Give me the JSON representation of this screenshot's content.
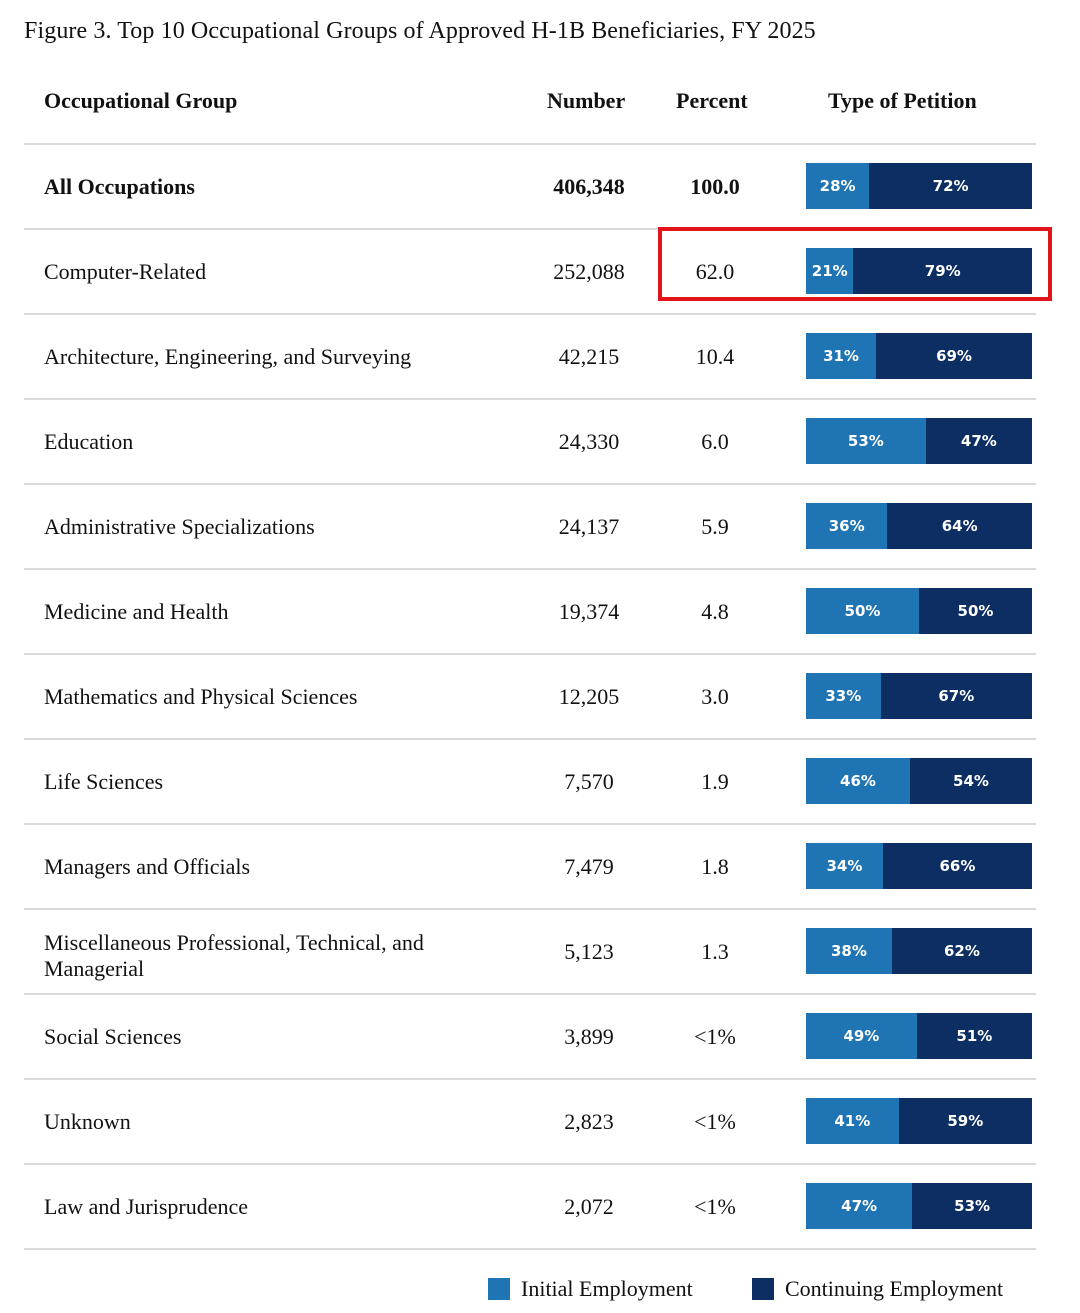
{
  "chart_data": {
    "type": "table",
    "title": "Figure 3. Top 10 Occupational Groups of Approved H-1B Beneficiaries, FY 2025",
    "columns": [
      "Occupational Group",
      "Number",
      "Percent",
      "Type of Petition"
    ],
    "rows": [
      {
        "group": "All Occupations",
        "number": "406,348",
        "percent": "100.0",
        "initial_pct": 28,
        "initial_label": "28%",
        "continuing_pct": 72,
        "continuing_label": "72%"
      },
      {
        "group": "Computer-Related",
        "number": "252,088",
        "percent": "62.0",
        "initial_pct": 21,
        "initial_label": "21%",
        "continuing_pct": 79,
        "continuing_label": "79%"
      },
      {
        "group": "Architecture, Engineering, and Surveying",
        "number": "42,215",
        "percent": "10.4",
        "initial_pct": 31,
        "initial_label": "31%",
        "continuing_pct": 69,
        "continuing_label": "69%"
      },
      {
        "group": "Education",
        "number": "24,330",
        "percent": "6.0",
        "initial_pct": 53,
        "initial_label": "53%",
        "continuing_pct": 47,
        "continuing_label": "47%"
      },
      {
        "group": "Administrative Specializations",
        "number": "24,137",
        "percent": "5.9",
        "initial_pct": 36,
        "initial_label": "36%",
        "continuing_pct": 64,
        "continuing_label": "64%"
      },
      {
        "group": "Medicine and Health",
        "number": "19,374",
        "percent": "4.8",
        "initial_pct": 50,
        "initial_label": "50%",
        "continuing_pct": 50,
        "continuing_label": "50%"
      },
      {
        "group": "Mathematics and Physical Sciences",
        "number": "12,205",
        "percent": "3.0",
        "initial_pct": 33,
        "initial_label": "33%",
        "continuing_pct": 67,
        "continuing_label": "67%"
      },
      {
        "group": "Life Sciences",
        "number": "7,570",
        "percent": "1.9",
        "initial_pct": 46,
        "initial_label": "46%",
        "continuing_pct": 54,
        "continuing_label": "54%"
      },
      {
        "group": "Managers and Officials",
        "number": "7,479",
        "percent": "1.8",
        "initial_pct": 34,
        "initial_label": "34%",
        "continuing_pct": 66,
        "continuing_label": "66%"
      },
      {
        "group": "Miscellaneous Professional, Technical, and Managerial",
        "number": "5,123",
        "percent": "1.3",
        "initial_pct": 38,
        "initial_label": "38%",
        "continuing_pct": 62,
        "continuing_label": "62%"
      },
      {
        "group": "Social Sciences",
        "number": "3,899",
        "percent": "<1%",
        "initial_pct": 49,
        "initial_label": "49%",
        "continuing_pct": 51,
        "continuing_label": "51%"
      },
      {
        "group": "Unknown",
        "number": "2,823",
        "percent": "<1%",
        "initial_pct": 41,
        "initial_label": "41%",
        "continuing_pct": 59,
        "continuing_label": "59%"
      },
      {
        "group": "Law and Jurisprudence",
        "number": "2,072",
        "percent": "<1%",
        "initial_pct": 47,
        "initial_label": "47%",
        "continuing_pct": 53,
        "continuing_label": "53%"
      }
    ],
    "legend": [
      "Initial Employment",
      "Continuing Employment"
    ],
    "legend_placement": "bottom-right",
    "colors": {
      "initial": "#1f74b4",
      "continuing": "#0c2e63",
      "highlight": "#e3131b"
    },
    "highlighted_row": "Computer-Related"
  }
}
